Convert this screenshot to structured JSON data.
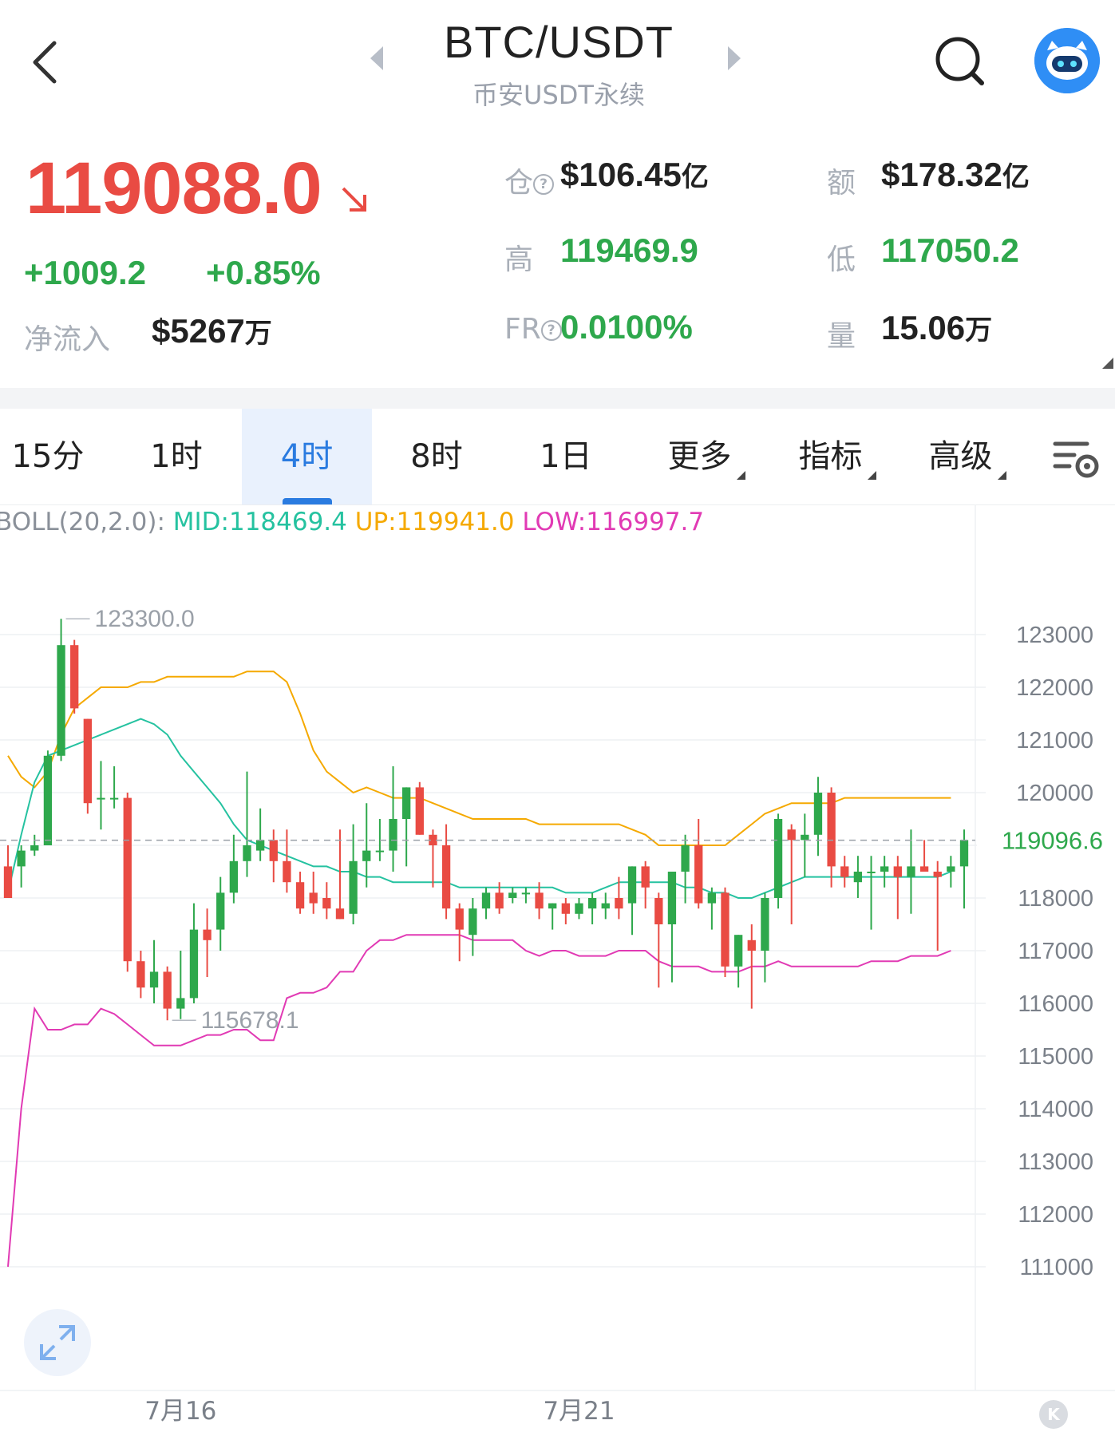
{
  "header": {
    "title": "BTC/USDT",
    "subtitle": "币安USDT永续"
  },
  "stats": {
    "price": "119088.0",
    "change_abs": "+1009.2",
    "change_pct": "+0.85%",
    "net_inflow_label": "净流入",
    "net_inflow_value": "$5267",
    "net_inflow_unit": "万",
    "oi_label": "仓",
    "oi_value": "$106.45",
    "oi_unit": "亿",
    "turnover_label": "额",
    "turnover_value": "$178.32",
    "turnover_unit": "亿",
    "high_label": "高",
    "high_value": "119469.9",
    "low_label": "低",
    "low_value": "117050.2",
    "fr_label": "FR",
    "fr_value": "0.0100%",
    "vol_label": "量",
    "vol_value": "15.06",
    "vol_unit": "万",
    "colors": {
      "up": "#2ea84c",
      "down": "#e94b43"
    }
  },
  "tabs": {
    "items": [
      "15分",
      "1时",
      "4时",
      "8时",
      "1日",
      "更多",
      "指标",
      "高级"
    ],
    "active": "4时"
  },
  "indicator": {
    "prefix": "BOLL(20,2.0):",
    "mid": "MID:118469.4",
    "up": "UP:119941.0",
    "low": "LOW:116997.7",
    "colors": {
      "mid": "#25c2a0",
      "up": "#f5a900",
      "low": "#e13ab4"
    }
  },
  "chart_data": {
    "type": "candlestick",
    "ylim": [
      110500,
      123600
    ],
    "y_ticks": [
      "123000",
      "122000",
      "121000",
      "120000",
      "119000",
      "118000",
      "117000",
      "116000",
      "115000",
      "114000",
      "113000",
      "112000",
      "111000"
    ],
    "x_labels": [
      {
        "label": "7月16",
        "index": 13
      },
      {
        "label": "7月21",
        "index": 43
      }
    ],
    "current_price_label": "119096.6",
    "current_price": 119096.6,
    "max_marker": {
      "label": "123300.0",
      "value": 123300,
      "index": 4
    },
    "min_marker": {
      "label": "115678.1",
      "value": 115678.1,
      "index": 12
    },
    "candles": [
      [
        118600,
        119000,
        118000,
        118000
      ],
      [
        118600,
        119000,
        118200,
        118900
      ],
      [
        118900,
        119200,
        118800,
        119000
      ],
      [
        119000,
        120800,
        119000,
        120700
      ],
      [
        120700,
        123300,
        120600,
        122800
      ],
      [
        122800,
        122900,
        121500,
        121600
      ],
      [
        121400,
        121400,
        119600,
        119800
      ],
      [
        119900,
        120600,
        119300,
        119900
      ],
      [
        119900,
        120500,
        119700,
        119900
      ],
      [
        119900,
        120000,
        116600,
        116800
      ],
      [
        116800,
        117000,
        116100,
        116300
      ],
      [
        116300,
        117200,
        116000,
        116600
      ],
      [
        116600,
        116700,
        115678.1,
        115900
      ],
      [
        115900,
        117000,
        115700,
        116100
      ],
      [
        116100,
        117900,
        116000,
        117400
      ],
      [
        117400,
        117800,
        116500,
        117200
      ],
      [
        117400,
        118400,
        117000,
        118100
      ],
      [
        118100,
        119200,
        117900,
        118700
      ],
      [
        118700,
        120400,
        118400,
        119000
      ],
      [
        118900,
        119700,
        118700,
        119100
      ],
      [
        119100,
        119300,
        118300,
        118700
      ],
      [
        118700,
        119300,
        118100,
        118300
      ],
      [
        118300,
        118500,
        117700,
        117800
      ],
      [
        118100,
        118500,
        117700,
        117900
      ],
      [
        118000,
        118300,
        117600,
        117800
      ],
      [
        117800,
        119300,
        117600,
        117600
      ],
      [
        117700,
        119400,
        117500,
        118700
      ],
      [
        118700,
        119800,
        118200,
        118900
      ],
      [
        118900,
        119500,
        118700,
        118900
      ],
      [
        118900,
        120500,
        118500,
        119500
      ],
      [
        119500,
        120100,
        118600,
        120100
      ],
      [
        120100,
        120200,
        119200,
        119200
      ],
      [
        119200,
        119300,
        118200,
        119000
      ],
      [
        119000,
        119400,
        117600,
        117800
      ],
      [
        117800,
        117900,
        116800,
        117400
      ],
      [
        117300,
        118000,
        116900,
        117800
      ],
      [
        117800,
        118200,
        117600,
        118100
      ],
      [
        118100,
        118300,
        117700,
        117800
      ],
      [
        118000,
        118200,
        117900,
        118100
      ],
      [
        118100,
        118200,
        117900,
        118100
      ],
      [
        118100,
        118300,
        117600,
        117800
      ],
      [
        117800,
        117900,
        117400,
        117900
      ],
      [
        117900,
        118000,
        117500,
        117700
      ],
      [
        117700,
        118000,
        117600,
        117900
      ],
      [
        117800,
        118100,
        117500,
        118000
      ],
      [
        117800,
        118100,
        117600,
        117900
      ],
      [
        118000,
        118400,
        117600,
        117800
      ],
      [
        117900,
        118600,
        117300,
        118600
      ],
      [
        118600,
        118700,
        117800,
        118200
      ],
      [
        118000,
        118100,
        116300,
        117500
      ],
      [
        117500,
        118500,
        116400,
        118500
      ],
      [
        118500,
        119200,
        117900,
        119000
      ],
      [
        119000,
        119500,
        117800,
        117900
      ],
      [
        117900,
        118200,
        117400,
        118100
      ],
      [
        118100,
        118200,
        116500,
        116700
      ],
      [
        116700,
        117300,
        116300,
        117300
      ],
      [
        117200,
        117500,
        115900,
        117000
      ],
      [
        117000,
        118100,
        116400,
        118000
      ],
      [
        118000,
        119600,
        117800,
        119500
      ],
      [
        119300,
        119400,
        117500,
        119100
      ],
      [
        119100,
        119600,
        118400,
        119200
      ],
      [
        119200,
        120300,
        118800,
        120000
      ],
      [
        120000,
        120100,
        118200,
        118600
      ],
      [
        118600,
        118800,
        118200,
        118400
      ],
      [
        118300,
        118800,
        118000,
        118500
      ],
      [
        118500,
        118800,
        117400,
        118500
      ],
      [
        118500,
        118800,
        118200,
        118600
      ],
      [
        118600,
        118800,
        117600,
        118400
      ],
      [
        118400,
        119300,
        117700,
        118600
      ],
      [
        118600,
        119100,
        118500,
        118500
      ],
      [
        118500,
        118700,
        117000,
        118400
      ],
      [
        118500,
        118800,
        118200,
        118600
      ],
      [
        118600,
        119300,
        117800,
        119100
      ]
    ],
    "boll_mid": [
      118100,
      119200,
      120200,
      120700,
      120800,
      120900,
      121000,
      121100,
      121200,
      121300,
      121400,
      121300,
      121100,
      120700,
      120400,
      120100,
      119800,
      119400,
      119100,
      119000,
      118900,
      118800,
      118700,
      118600,
      118600,
      118500,
      118500,
      118400,
      118400,
      118300,
      118300,
      118300,
      118300,
      118300,
      118200,
      118200,
      118200,
      118200,
      118200,
      118200,
      118200,
      118200,
      118100,
      118100,
      118100,
      118200,
      118300,
      118300,
      118300,
      118300,
      118300,
      118200,
      118200,
      118100,
      118100,
      118000,
      118000,
      118100,
      118200,
      118300,
      118400,
      118400,
      118400,
      118400,
      118400,
      118400,
      118400,
      118400,
      118400,
      118400,
      118400,
      118500
    ],
    "boll_up_note": "upper and lower bands drawn from the visible chart",
    "boll_up": [
      120700,
      120300,
      120100,
      120400,
      121100,
      121600,
      121800,
      122000,
      122000,
      122000,
      122100,
      122100,
      122200,
      122200,
      122200,
      122200,
      122200,
      122200,
      122300,
      122300,
      122300,
      122100,
      121500,
      120800,
      120400,
      120200,
      120000,
      120100,
      120000,
      119900,
      119900,
      119900,
      119800,
      119700,
      119600,
      119500,
      119500,
      119500,
      119500,
      119500,
      119400,
      119400,
      119400,
      119400,
      119400,
      119400,
      119400,
      119300,
      119200,
      119000,
      119000,
      119000,
      119000,
      119000,
      119000,
      119200,
      119400,
      119600,
      119700,
      119800,
      119800,
      119800,
      119800,
      119900,
      119900,
      119900,
      119900,
      119900,
      119900,
      119900,
      119900,
      119900
    ],
    "boll_low": [
      111000,
      114000,
      115900,
      115500,
      115500,
      115600,
      115600,
      115900,
      115800,
      115600,
      115400,
      115200,
      115200,
      115200,
      115300,
      115400,
      115400,
      115500,
      115500,
      115300,
      115300,
      116100,
      116200,
      116200,
      116300,
      116600,
      116600,
      117000,
      117200,
      117200,
      117300,
      117300,
      117300,
      117300,
      117300,
      117200,
      117200,
      117200,
      117200,
      117000,
      116900,
      117000,
      117000,
      116900,
      116900,
      116900,
      117000,
      117000,
      117000,
      116800,
      116700,
      116700,
      116700,
      116600,
      116600,
      116600,
      116700,
      116700,
      116800,
      116700,
      116700,
      116700,
      116700,
      116700,
      116700,
      116800,
      116800,
      116800,
      116900,
      116900,
      116900,
      117000
    ]
  }
}
